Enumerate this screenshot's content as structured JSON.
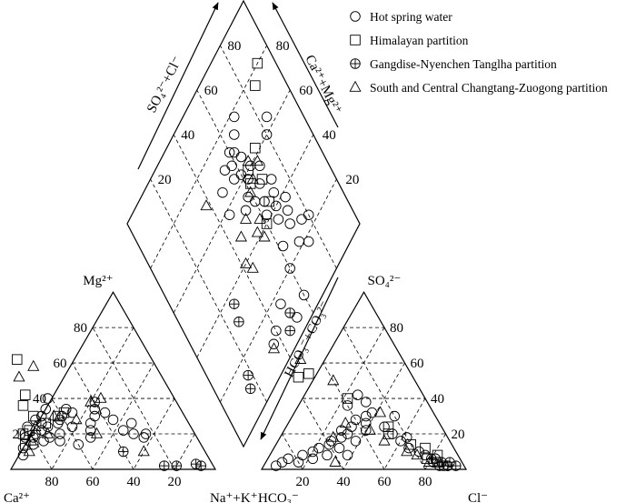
{
  "chart_data": {
    "type": "scatter",
    "subtype": "piper-trilinear",
    "legend": {
      "placement": "top-right",
      "entries": [
        {
          "label": "Hot spring water",
          "marker": "circle"
        },
        {
          "label": "Himalayan partition",
          "marker": "square"
        },
        {
          "label": "Gangdise-Nyenchen Tanglha partition",
          "marker": "circle-plus"
        },
        {
          "label": "South and Central Changtang-Zuogong partition",
          "marker": "triangle"
        }
      ]
    },
    "cation_triangle": {
      "corners": {
        "left": "Ca²⁺",
        "apex": "Mg²⁺",
        "right": "Na⁺+K⁺"
      },
      "bottom_ticks": [
        "80",
        "60",
        "40",
        "20"
      ],
      "left_ticks": [
        "20",
        "40",
        "60",
        "80"
      ],
      "axis_range": [
        0,
        100
      ],
      "grid": true
    },
    "anion_triangle": {
      "corners": {
        "left": "HCO₃⁻",
        "apex": "SO₄²⁻",
        "right": "Cl⁻"
      },
      "bottom_ticks": [
        "20",
        "40",
        "60",
        "80"
      ],
      "right_ticks": [
        "20",
        "40",
        "60",
        "80"
      ],
      "axis_range": [
        0,
        100
      ],
      "grid": true
    },
    "diamond": {
      "upper_left_axis": "SO₄²⁻+Cl⁻",
      "upper_right_axis": "Ca²⁺+Mg²⁺",
      "lower_left_axis": "HCO₃⁻+CO₃²⁻",
      "left_ticks": [
        "80",
        "60",
        "40",
        "20"
      ],
      "right_ticks": [
        "80",
        "60",
        "40",
        "20"
      ],
      "axis_range": [
        0,
        100
      ],
      "grid": true
    },
    "series": [
      {
        "marker": "circle",
        "cation": [
          [
            88,
            12
          ],
          [
            82,
            14
          ],
          [
            80,
            18
          ],
          [
            78,
            20
          ],
          [
            76,
            16
          ],
          [
            74,
            22
          ],
          [
            72,
            18
          ],
          [
            70,
            24
          ],
          [
            68,
            16
          ],
          [
            66,
            20
          ],
          [
            64,
            26
          ],
          [
            62,
            28
          ],
          [
            60,
            30
          ],
          [
            58,
            24
          ],
          [
            56,
            34
          ],
          [
            54,
            32
          ],
          [
            50,
            22
          ],
          [
            48,
            26
          ],
          [
            44,
            30
          ],
          [
            42,
            34
          ],
          [
            40,
            38
          ],
          [
            38,
            32
          ],
          [
            36,
            28
          ],
          [
            34,
            22
          ],
          [
            30,
            20
          ],
          [
            28,
            26
          ],
          [
            26,
            18
          ],
          [
            24,
            20
          ],
          [
            62,
            40
          ],
          [
            66,
            34
          ],
          [
            60,
            14
          ],
          [
            52,
            18
          ],
          [
            80,
            24
          ],
          [
            84,
            18
          ],
          [
            90,
            8
          ],
          [
            72,
            26
          ],
          [
            70,
            30
          ],
          [
            74,
            28
          ]
        ],
        "anion": [
          [
            92,
            2
          ],
          [
            88,
            4
          ],
          [
            84,
            6
          ],
          [
            80,
            4
          ],
          [
            76,
            8
          ],
          [
            72,
            6
          ],
          [
            70,
            10
          ],
          [
            66,
            12
          ],
          [
            64,
            8
          ],
          [
            60,
            14
          ],
          [
            58,
            16
          ],
          [
            56,
            12
          ],
          [
            52,
            18
          ],
          [
            50,
            22
          ],
          [
            48,
            20
          ],
          [
            44,
            24
          ],
          [
            40,
            28
          ],
          [
            38,
            22
          ],
          [
            36,
            26
          ],
          [
            34,
            30
          ],
          [
            30,
            32
          ],
          [
            28,
            24
          ],
          [
            26,
            20
          ],
          [
            24,
            16
          ],
          [
            22,
            12
          ],
          [
            20,
            18
          ],
          [
            18,
            10
          ],
          [
            16,
            8
          ],
          [
            14,
            4
          ],
          [
            12,
            6
          ],
          [
            10,
            2
          ],
          [
            30,
            38
          ],
          [
            32,
            42
          ],
          [
            40,
            36
          ],
          [
            46,
            16
          ],
          [
            54,
            8
          ],
          [
            20,
            30
          ],
          [
            8,
            2
          ]
        ],
        "diamond": [
          [
            72,
            60
          ],
          [
            70,
            62
          ],
          [
            68,
            58
          ],
          [
            66,
            64
          ],
          [
            64,
            56
          ],
          [
            62,
            60
          ],
          [
            60,
            66
          ],
          [
            58,
            62
          ],
          [
            56,
            70
          ],
          [
            54,
            58
          ],
          [
            52,
            66
          ],
          [
            50,
            60
          ],
          [
            48,
            72
          ],
          [
            46,
            64
          ],
          [
            44,
            70
          ],
          [
            42,
            62
          ],
          [
            40,
            68
          ],
          [
            38,
            74
          ],
          [
            36,
            66
          ],
          [
            34,
            72
          ],
          [
            30,
            70
          ],
          [
            28,
            62
          ],
          [
            26,
            76
          ],
          [
            24,
            80
          ],
          [
            22,
            70
          ],
          [
            20,
            60
          ],
          [
            18,
            74
          ],
          [
            16,
            48
          ],
          [
            12,
            40
          ],
          [
            10,
            36
          ],
          [
            8,
            60
          ],
          [
            6,
            52
          ],
          [
            60,
            80
          ],
          [
            64,
            84
          ],
          [
            66,
            48
          ],
          [
            58,
            46
          ],
          [
            70,
            54
          ],
          [
            74,
            66
          ],
          [
            78,
            70
          ],
          [
            52,
            54
          ]
        ]
      },
      {
        "marker": "square",
        "cation": [
          [
            66,
            62
          ],
          [
            72,
            42
          ],
          [
            76,
            36
          ],
          [
            74,
            30
          ],
          [
            70,
            26
          ],
          [
            80,
            22
          ],
          [
            84,
            20
          ],
          [
            62,
            30
          ],
          [
            58,
            32
          ],
          [
            86,
            14
          ]
        ],
        "anion": [
          [
            50,
            54
          ],
          [
            56,
            52
          ],
          [
            38,
            40
          ],
          [
            28,
            20
          ],
          [
            14,
            12
          ],
          [
            16,
            6
          ],
          [
            20,
            14
          ],
          [
            26,
            24
          ],
          [
            10,
            8
          ],
          [
            12,
            4
          ]
        ],
        "diamond": [
          [
            80,
            92
          ],
          [
            76,
            86
          ],
          [
            60,
            64
          ],
          [
            56,
            62
          ],
          [
            44,
            66
          ],
          [
            40,
            60
          ],
          [
            62,
            72
          ],
          [
            52,
            68
          ]
        ]
      },
      {
        "marker": "circle-plus",
        "cation": [
          [
            24,
            2
          ],
          [
            18,
            2
          ],
          [
            6,
            2
          ],
          [
            8,
            3
          ],
          [
            40,
            10
          ]
        ],
        "anion": [
          [
            4,
            2
          ],
          [
            6,
            4
          ],
          [
            8,
            2
          ],
          [
            10,
            4
          ],
          [
            12,
            2
          ],
          [
            14,
            6
          ]
        ],
        "diamond": [
          [
            14,
            18
          ],
          [
            10,
            16
          ],
          [
            30,
            26
          ],
          [
            36,
            28
          ],
          [
            6,
            46
          ],
          [
            10,
            50
          ]
        ]
      },
      {
        "marker": "triangle",
        "cation": [
          [
            70,
            52
          ],
          [
            60,
            58
          ],
          [
            42,
            38
          ],
          [
            36,
            40
          ],
          [
            30,
            10
          ],
          [
            48,
            20
          ],
          [
            76,
            24
          ],
          [
            64,
            30
          ],
          [
            72,
            20
          ],
          [
            54,
            28
          ],
          [
            82,
            16
          ],
          [
            86,
            10
          ]
        ],
        "anion": [
          [
            60,
            68
          ],
          [
            50,
            62
          ],
          [
            40,
            50
          ],
          [
            26,
            32
          ],
          [
            46,
            26
          ],
          [
            56,
            18
          ],
          [
            32,
            16
          ],
          [
            16,
            4
          ],
          [
            24,
            10
          ],
          [
            36,
            22
          ],
          [
            20,
            8
          ],
          [
            62,
            4
          ]
        ],
        "diamond": [
          [
            58,
            70
          ],
          [
            62,
            66
          ],
          [
            56,
            64
          ],
          [
            44,
            58
          ],
          [
            38,
            56
          ],
          [
            36,
            44
          ],
          [
            50,
            52
          ],
          [
            48,
            46
          ],
          [
            42,
            54
          ],
          [
            70,
            38
          ],
          [
            40,
            42
          ],
          [
            54,
            60
          ]
        ]
      }
    ]
  }
}
